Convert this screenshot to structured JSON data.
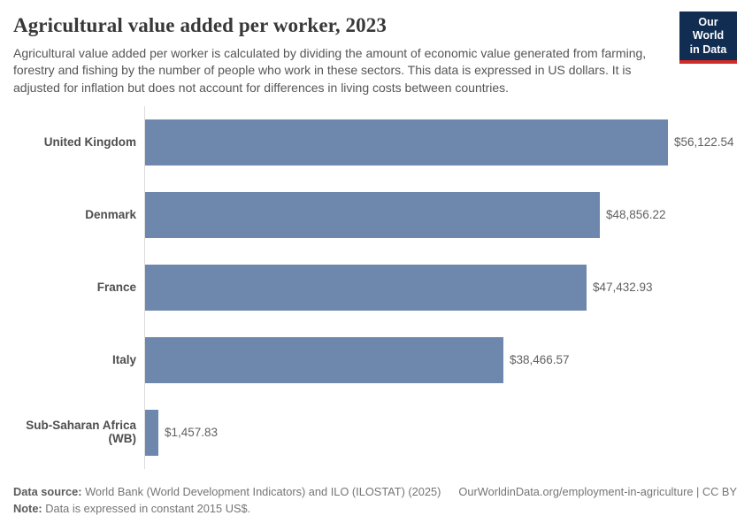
{
  "header": {
    "title": "Agricultural value added per worker, 2023",
    "subtitle": "Agricultural value added per worker is calculated by dividing the amount of economic value generated from farming, forestry and fishing by the number of people who work in these sectors. This data is expressed in US dollars. It is adjusted for inflation but does not account for differences in living costs between countries.",
    "logo": {
      "line1": "Our World",
      "line2": "in Data"
    }
  },
  "chart_data": {
    "type": "bar",
    "orientation": "horizontal",
    "title": "Agricultural value added per worker, 2023",
    "categories": [
      "United Kingdom",
      "Denmark",
      "France",
      "Italy",
      "Sub-Saharan Africa (WB)"
    ],
    "values": [
      56122.54,
      48856.22,
      47432.93,
      38466.57,
      1457.83
    ],
    "value_labels": [
      "$56,122.54",
      "$48,856.22",
      "$47,432.93",
      "$38,466.57",
      "$1,457.83"
    ],
    "xlabel": "",
    "ylabel": "",
    "xlim": [
      0,
      56122.54
    ],
    "grid": false,
    "legend": "none",
    "unit": "US$ (constant 2015)"
  },
  "footer": {
    "source_label": "Data source:",
    "source_text": " World Bank (World Development Indicators) and ILO (ILOSTAT) (2025)",
    "note_label": "Note:",
    "note_text": " Data is expressed in constant 2015 US$.",
    "link": "OurWorldinData.org/employment-in-agriculture | CC BY"
  },
  "colors": {
    "bar": "#6d87ad",
    "axis_line": "#dcdcdc",
    "logo_navy": "#112d52",
    "logo_red": "#cf2b27"
  }
}
